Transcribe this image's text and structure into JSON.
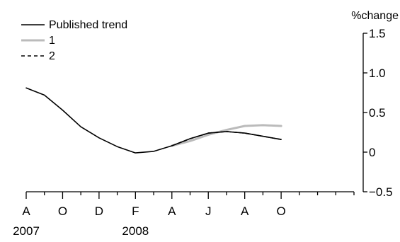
{
  "chart_data": {
    "type": "line",
    "title": "",
    "ylabel": "%change",
    "xlabel": "",
    "ylim": [
      -0.5,
      1.5
    ],
    "yticks": [
      -0.5,
      0,
      0.5,
      1.0,
      1.5
    ],
    "ytick_labels": [
      "−0.5",
      "0",
      "0.5",
      "1.0",
      "1.5"
    ],
    "x": [
      "2007-04",
      "2007-05",
      "2007-06",
      "2007-07",
      "2007-08",
      "2007-09",
      "2007-10",
      "2007-11",
      "2007-12",
      "2008-01",
      "2008-02",
      "2008-03",
      "2008-04",
      "2008-05",
      "2008-06",
      "2008-07",
      "2008-08",
      "2008-09",
      "2008-10"
    ],
    "xticks": [
      {
        "month": "A",
        "year": "2007",
        "x": "2007-04"
      },
      {
        "month": "O",
        "year": "",
        "x": "2007-06"
      },
      {
        "month": "D",
        "year": "",
        "x": "2007-08"
      },
      {
        "month": "F",
        "year": "2008",
        "x": "2007-10"
      },
      {
        "month": "A",
        "year": "",
        "x": "2007-12"
      },
      {
        "month": "J",
        "year": "",
        "x": "2008-02"
      },
      {
        "month": "A",
        "year": "",
        "x": "2008-04"
      },
      {
        "month": "O",
        "year": "",
        "x": "2008-06"
      }
    ],
    "grid": false,
    "legend_position": "top-left",
    "series": [
      {
        "name": "Published trend",
        "color": "#000000",
        "style": "solid",
        "points": [
          [
            "2007-04",
            0.81
          ],
          [
            "2007-05",
            0.72
          ],
          [
            "2007-06",
            0.53
          ],
          [
            "2007-07",
            0.32
          ],
          [
            "2007-08",
            0.18
          ],
          [
            "2007-09",
            0.07
          ],
          [
            "2007-10",
            -0.01
          ],
          [
            "2007-11",
            0.01
          ],
          [
            "2007-12",
            0.08
          ],
          [
            "2008-01",
            0.17
          ],
          [
            "2008-02",
            0.24
          ],
          [
            "2008-03",
            0.26
          ],
          [
            "2008-04",
            0.24
          ],
          [
            "2008-05",
            0.2
          ],
          [
            "2008-06",
            0.16
          ]
        ]
      },
      {
        "name": "1",
        "color": "#bbbbbb",
        "style": "solid",
        "points": [
          [
            "2007-12",
            0.08
          ],
          [
            "2008-01",
            0.14
          ],
          [
            "2008-02",
            0.22
          ],
          [
            "2008-03",
            0.28
          ],
          [
            "2008-04",
            0.33
          ],
          [
            "2008-05",
            0.34
          ],
          [
            "2008-06",
            0.33
          ]
        ]
      },
      {
        "name": "2",
        "color": "#000000",
        "style": "dashed",
        "points": [
          [
            "2007-12",
            0.08
          ],
          [
            "2008-01",
            0.17
          ],
          [
            "2008-02",
            0.24
          ],
          [
            "2008-03",
            0.26
          ],
          [
            "2008-04",
            0.24
          ],
          [
            "2008-05",
            0.2
          ],
          [
            "2008-06",
            0.16
          ]
        ]
      }
    ]
  }
}
